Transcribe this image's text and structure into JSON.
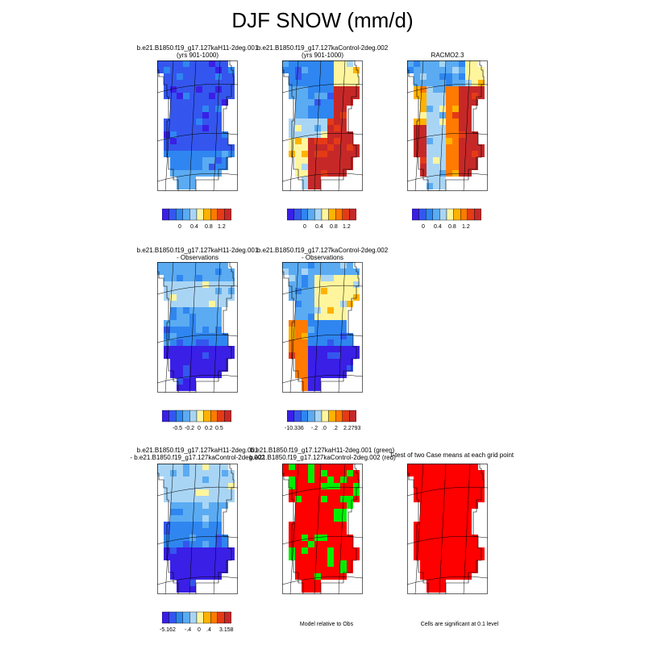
{
  "title": "DJF SNOW (mm/d)",
  "panels": [
    {
      "line1": "b.e21.B1850.f19_g17.127kaH11-2deg.001",
      "line2": "(yrs 901-1000)"
    },
    {
      "line1": "b.e21.B1850.f19_g17.127kaControl-2deg.002",
      "line2": "(yrs 901-1000)"
    },
    {
      "line1": "RACMO2.3",
      "line2": ""
    },
    {
      "line1": "b.e21.B1850.f19_g17.127kaH11-2deg.001",
      "line2": "- Observations"
    },
    {
      "line1": "b.e21.B1850.f19_g17.127kaControl-2deg.002",
      "line2": "- Observations"
    },
    {
      "line1": "b.e21.B1850.f19_g17.127kaH11-2deg.001",
      "line2": "- b.e21.B1850.f19_g17.127kaControl-2deg.002"
    },
    {
      "line1": "b.e21.B1850.f19_g17.127kaH11-2deg.001 (green)",
      "line2": "b.e21.B1850.f19_g17.127kaControl-2deg.002 (red)"
    },
    {
      "line1": "T-test of two Case means at each grid point",
      "line2": ""
    }
  ],
  "colorbars": {
    "abs": [
      "0",
      "0.4",
      "0.8",
      "1.2"
    ],
    "diff_obs1": [
      "-0.5",
      "-0.2",
      "0",
      "0.2",
      "0.5"
    ],
    "diff_obs2": [
      "-10.336",
      "-.2",
      ".0",
      ".2",
      "2.2793"
    ],
    "diff_case": [
      "-5.162",
      "-.4",
      "0",
      ".4",
      "3.158"
    ]
  },
  "notes": {
    "model_rel": "Model relative to Obs",
    "sig": "Cells are significant at 0.1 level"
  },
  "palette": [
    "#3a1fe6",
    "#3456ee",
    "#2f86f0",
    "#5aabf2",
    "#a9d5f5",
    "#fff59d",
    "#ffb300",
    "#ff7a00",
    "#e53a16",
    "#c62828"
  ],
  "sig_colors": {
    "model1": "#00ee00",
    "model2": "#ff0000"
  }
}
